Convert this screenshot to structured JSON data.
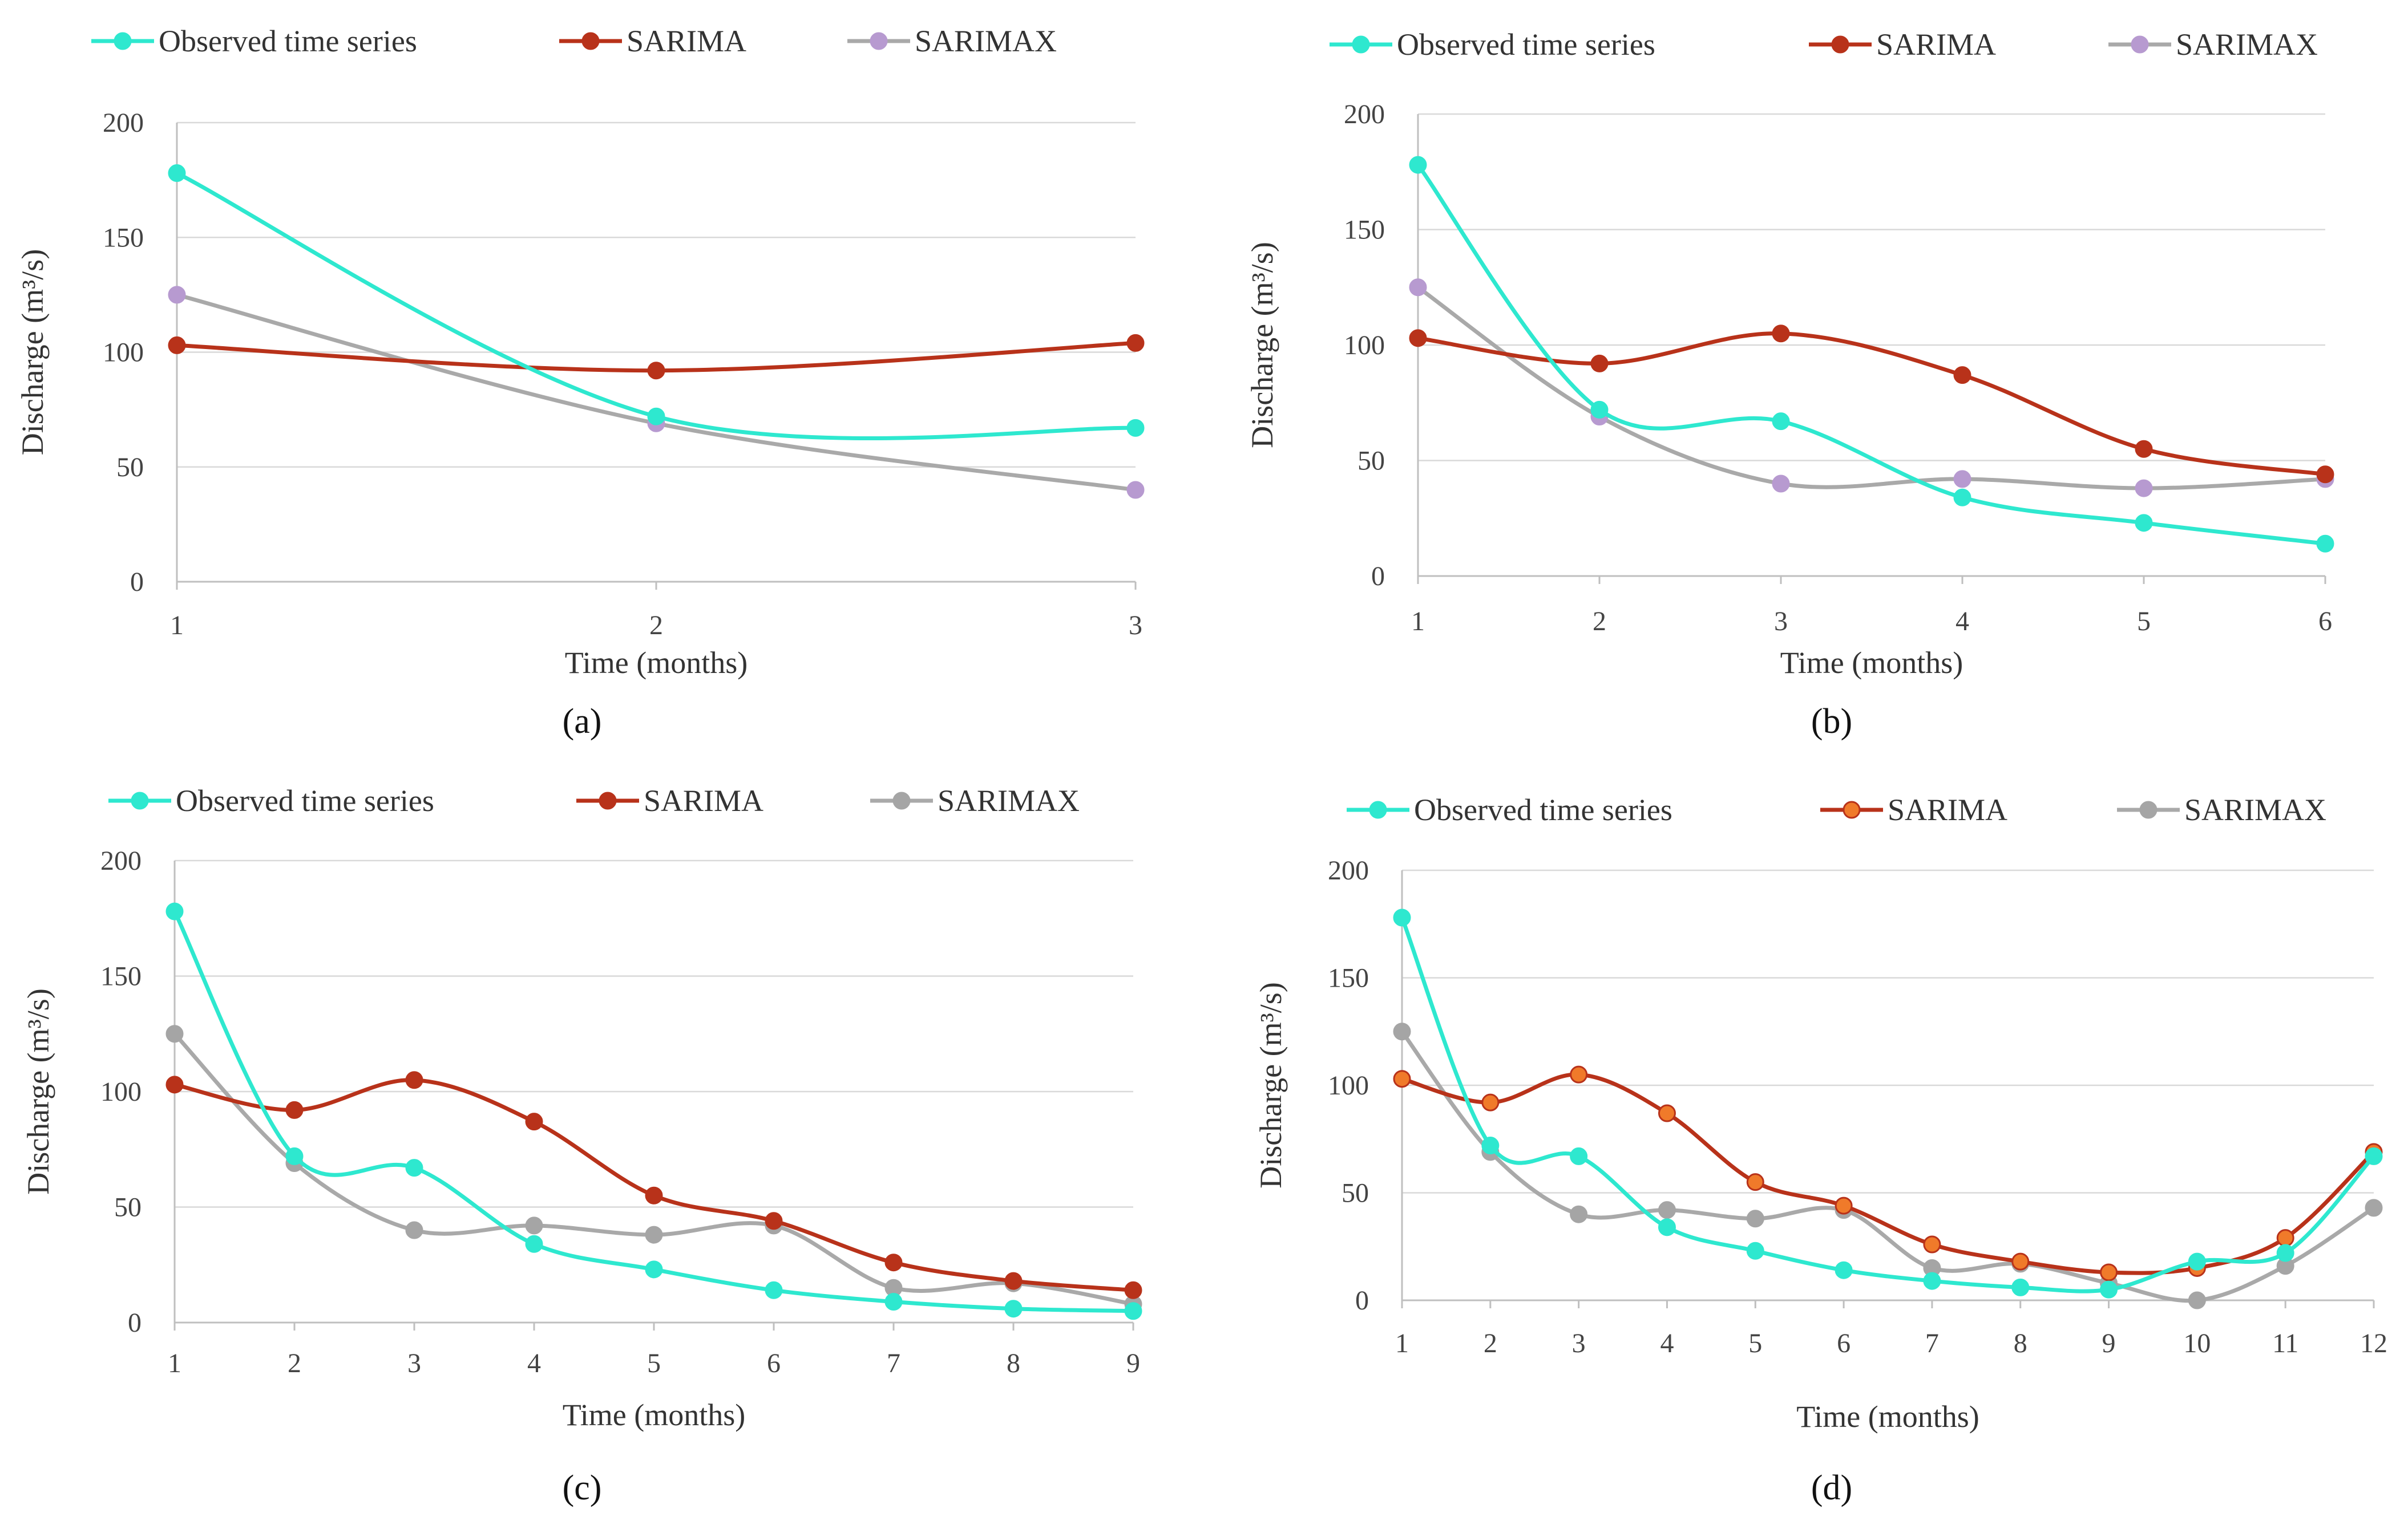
{
  "colors": {
    "observed": "#2ee8cf",
    "sarima": "#b8321a",
    "sarima_marker_d": "#f07a2a",
    "sarimax_ab": "#b79ad0",
    "sarimax_cd": "#a5a5a5",
    "sarimax_line": "#a9a9a9",
    "grid": "#d9d9d9",
    "axis": "#bfbfbf"
  },
  "chart_data": [
    {
      "id": "a",
      "panel_label": "(a)",
      "type": "line",
      "xlabel": "Time (months)",
      "ylabel": "Discharge  (m³/s)",
      "ylim": [
        0,
        200
      ],
      "yticks": [
        0,
        50,
        100,
        150,
        200
      ],
      "x": [
        1,
        2,
        3
      ],
      "series": [
        {
          "name": "Observed time series",
          "key": "observed",
          "values": [
            178,
            72,
            67
          ]
        },
        {
          "name": "SARIMA",
          "key": "sarima",
          "values": [
            103,
            92,
            104
          ]
        },
        {
          "name": "SARIMAX",
          "key": "sarimax",
          "values": [
            125,
            69,
            40
          ]
        }
      ]
    },
    {
      "id": "b",
      "panel_label": "(b)",
      "type": "line",
      "xlabel": "Time (months)",
      "ylabel": "Discharge  (m³/s)",
      "ylim": [
        0,
        200
      ],
      "yticks": [
        0,
        50,
        100,
        150,
        200
      ],
      "x": [
        1,
        2,
        3,
        4,
        5,
        6
      ],
      "series": [
        {
          "name": "Observed time series",
          "key": "observed",
          "values": [
            178,
            72,
            67,
            34,
            23,
            14
          ]
        },
        {
          "name": "SARIMA",
          "key": "sarima",
          "values": [
            103,
            92,
            105,
            87,
            55,
            44
          ]
        },
        {
          "name": "SARIMAX",
          "key": "sarimax",
          "values": [
            125,
            69,
            40,
            42,
            38,
            42
          ]
        }
      ]
    },
    {
      "id": "c",
      "panel_label": "(c)",
      "type": "line",
      "xlabel": "Time (months)",
      "ylabel": "Discharge  (m³/s)",
      "ylim": [
        0,
        200
      ],
      "yticks": [
        0,
        50,
        100,
        150,
        200
      ],
      "x": [
        1,
        2,
        3,
        4,
        5,
        6,
        7,
        8,
        9
      ],
      "series": [
        {
          "name": "Observed time series",
          "key": "observed",
          "values": [
            178,
            72,
            67,
            34,
            23,
            14,
            9,
            6,
            5
          ]
        },
        {
          "name": "SARIMA",
          "key": "sarima",
          "values": [
            103,
            92,
            105,
            87,
            55,
            44,
            26,
            18,
            14
          ]
        },
        {
          "name": "SARIMAX",
          "key": "sarimax",
          "values": [
            125,
            69,
            40,
            42,
            38,
            42,
            15,
            17,
            8
          ]
        }
      ]
    },
    {
      "id": "d",
      "panel_label": "(d)",
      "type": "line",
      "xlabel": "Time (months)",
      "ylabel": "Discharge (m³/s)",
      "ylim": [
        0,
        200
      ],
      "yticks": [
        0,
        50,
        100,
        150,
        200
      ],
      "x": [
        1,
        2,
        3,
        4,
        5,
        6,
        7,
        8,
        9,
        10,
        11,
        12
      ],
      "series": [
        {
          "name": "Observed time series",
          "key": "observed",
          "values": [
            178,
            72,
            67,
            34,
            23,
            14,
            9,
            6,
            5,
            18,
            22,
            67
          ]
        },
        {
          "name": "SARIMA",
          "key": "sarima",
          "values": [
            103,
            92,
            105,
            87,
            55,
            44,
            26,
            18,
            13,
            15,
            29,
            69
          ]
        },
        {
          "name": "SARIMAX",
          "key": "sarimax",
          "values": [
            125,
            69,
            40,
            42,
            38,
            42,
            15,
            17,
            8,
            0,
            16,
            43
          ]
        }
      ]
    }
  ]
}
